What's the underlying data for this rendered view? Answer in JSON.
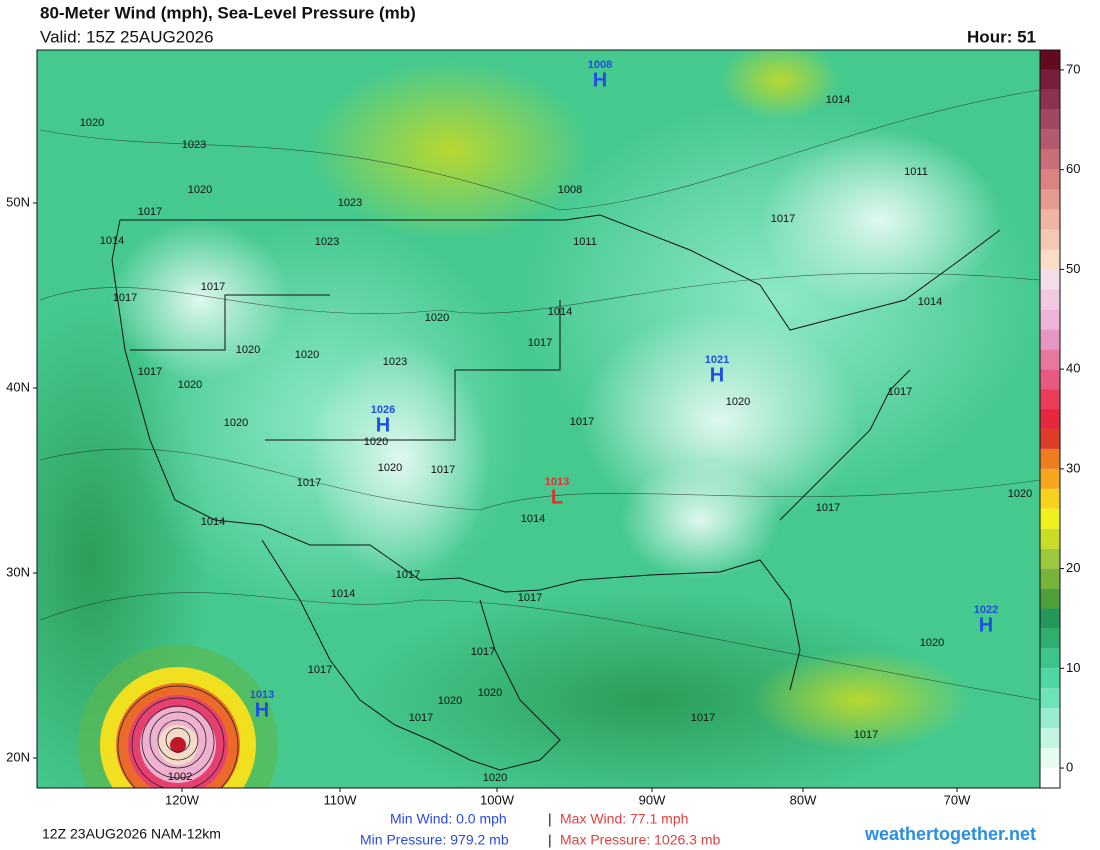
{
  "header": {
    "title": "80-Meter Wind (mph), Sea-Level Pressure (mb)",
    "valid": "Valid: 15Z 25AUG2026",
    "hour": "Hour: 51"
  },
  "map": {
    "lat_labels": [
      "50N",
      "40N",
      "30N",
      "20N"
    ],
    "lon_labels": [
      "120W",
      "110W",
      "100W",
      "90W",
      "80W",
      "70W"
    ],
    "pressure_centers": [
      {
        "letter": "H",
        "value": "1008"
      },
      {
        "letter": "H",
        "value": "1021"
      },
      {
        "letter": "H",
        "value": "1026"
      },
      {
        "letter": "L",
        "value": "1013"
      },
      {
        "letter": "H",
        "value": "1022"
      },
      {
        "letter": "H",
        "value": "1013"
      }
    ],
    "isobar_labels": [
      "1014",
      "1011",
      "1017",
      "1014",
      "1017",
      "1020",
      "1017",
      "1020",
      "1017",
      "1017",
      "1020",
      "1017",
      "1017",
      "1014",
      "1011",
      "1008",
      "1020",
      "1023",
      "1020",
      "1017",
      "1023",
      "1023",
      "1014",
      "1017",
      "1017",
      "1020",
      "1020",
      "1020",
      "1023",
      "1017",
      "1020",
      "1020",
      "1020",
      "1020",
      "1017",
      "1017",
      "1014",
      "1014",
      "1017",
      "1014",
      "1017",
      "1017",
      "1020",
      "1020",
      "1017",
      "1017",
      "1020",
      "1002"
    ]
  },
  "colorbar": {
    "lim": [
      -2,
      72
    ],
    "ticks": [
      0,
      10,
      20,
      30,
      40,
      50,
      60,
      70
    ],
    "colors": [
      "#ffffff",
      "#e6fbf2",
      "#c4f5e2",
      "#98ecd0",
      "#6ee2b9",
      "#4fd6a3",
      "#3cc48a",
      "#2fae70",
      "#23985a",
      "#4f9f3a",
      "#78b43c",
      "#9cc83c",
      "#c8dc28",
      "#f0f01e",
      "#f5d21e",
      "#f5a51e",
      "#eb7d1e",
      "#dc3c28",
      "#e6283c",
      "#eb3c5a",
      "#e65a82",
      "#e678a0",
      "#e696c3",
      "#eeb4d7",
      "#f0c8e1",
      "#f5dceb",
      "#fadcc8",
      "#f5c8b4",
      "#f0b4a5",
      "#e69b91",
      "#dc8282",
      "#c86e78",
      "#b45a6e",
      "#a04660",
      "#8c3250",
      "#781e3c",
      "#640a1e"
    ]
  },
  "footer": {
    "run": "12Z 23AUG2026 NAM-12km",
    "min_wind": "Min Wind:  0.0 mph",
    "separator": "|",
    "max_wind": "Max Wind: 77.1 mph",
    "min_pressure": "Min Pressure: 979.2 mb",
    "max_pressure": "Max Pressure: 1026.3 mb",
    "site": "weathertogether.net"
  }
}
